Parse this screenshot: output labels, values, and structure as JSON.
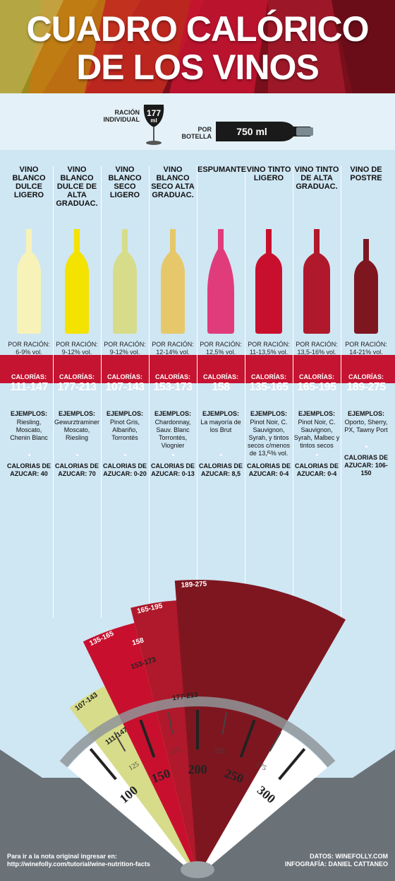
{
  "title": {
    "line1": "CUADRO CALÓRICO",
    "line2": "DE LOS VINOS"
  },
  "portion": {
    "single_label": "RACIÓN INDIVIDUAL",
    "single_value": "177",
    "single_unit": "ml",
    "bottle_label": "POR BOTELLA",
    "bottle_value": "750 ml"
  },
  "colors": {
    "band": "#c41431",
    "bg": "#cfe6f3"
  },
  "wines": [
    {
      "name": "VINO BLANCO DULCE LIGERO",
      "abv_label": "POR RACIÓN:",
      "abv": "6-9% vol.",
      "cal_label": "CALORÍAS:",
      "calories": "111-147",
      "examples_label": "EJEMPLOS:",
      "examples": "Riesling, Moscato, Chenin Blanc",
      "sugar_label": "CALORIAS DE AZUCAR: 40",
      "color": "#f7f2b8"
    },
    {
      "name": "VINO BLANCO DULCE DE ALTA GRADUAC.",
      "abv_label": "POR RACIÓN:",
      "abv": "9-12% vol.",
      "cal_label": "CALORÍAS:",
      "calories": "177-213",
      "examples_label": "EJEMPLOS:",
      "examples": "Gewurztraminer Moscato, Riesling",
      "sugar_label": "CALORIAS DE AZUCAR: 70",
      "color": "#f4e200"
    },
    {
      "name": "VINO BLANCO SECO LIGERO",
      "abv_label": "POR RACIÓN:",
      "abv": "9-12% vol.",
      "cal_label": "CALORÍAS:",
      "calories": "107-143",
      "examples_label": "EJEMPLOS:",
      "examples": "Pinot Gris, Albariño, Torrontés",
      "sugar_label": "CALORIAS DE AZUCAR: 0-20",
      "color": "#d7dc8a"
    },
    {
      "name": "VINO BLANCO SECO ALTA GRADUAC.",
      "abv_label": "POR RACIÓN:",
      "abv": "12-14% vol.",
      "cal_label": "CALORÍAS:",
      "calories": "153-173",
      "examples_label": "EJEMPLOS:",
      "examples": "Chardonnay, Sauv. Blanc Torrontés, Viognier",
      "sugar_label": "CALORIAS DE AZUCAR: 0-13",
      "color": "#e6c86a"
    },
    {
      "name": "ESPUMANTE",
      "abv_label": "POR RACIÓN:",
      "abv": "12,5% vol.",
      "cal_label": "CALORÍAS:",
      "calories": "158",
      "examples_label": "EJEMPLOS:",
      "examples": "La mayoría de los Brut",
      "sugar_label": "CALORIAS DE AZUCAR: 8,5",
      "color": "#e03c7c"
    },
    {
      "name": "VINO TINTO LIGERO",
      "abv_label": "POR RACIÓN:",
      "abv": "11-13,5% vol.",
      "cal_label": "CALORÍAS:",
      "calories": "135-165",
      "examples_label": "EJEMPLOS:",
      "examples": "Pinot Noir, C. Sauvignon, Syrah, y tintos secos c/menos de 13,5% vol.",
      "sugar_label": "CALORIAS DE AZUCAR: 0-4",
      "color": "#c8102e"
    },
    {
      "name": "VINO TINTO DE ALTA GRADUAC.",
      "abv_label": "POR RACIÓN:",
      "abv": "13,5-16% vol.",
      "cal_label": "CALORÍAS:",
      "calories": "165-195",
      "examples_label": "EJEMPLOS:",
      "examples": "Pinot Noir, C. Sauvignon, Syrah, Malbec y tintos secos",
      "sugar_label": "CALORIAS DE AZUCAR: 0-4",
      "color": "#b0182b"
    },
    {
      "name": "VINO DE POSTRE",
      "abv_label": "POR RACIÓN:",
      "abv": "14-21% vol.",
      "cal_label": "CALORÍAS:",
      "calories": "189-275",
      "examples_label": "EJEMPLOS:",
      "examples": "Oporto, Sherry, PX, Tawny Port",
      "sugar_label": "CALORIAS DE AZUCAR: 106-150",
      "color": "#7e1620"
    }
  ],
  "chart_data": {
    "type": "area",
    "title": "",
    "xlabel": "",
    "ylabel": "",
    "scale_min": 75,
    "scale_max": 325,
    "major_ticks": [
      "100",
      "150",
      "200",
      "250",
      "300"
    ],
    "minor_ticks": [
      "125",
      "175",
      "225",
      "275"
    ],
    "series": [
      {
        "name": "111-147",
        "low": 111,
        "high": 147,
        "color": "#f7f2b8"
      },
      {
        "name": "177-213",
        "low": 177,
        "high": 213,
        "color": "#f4e200"
      },
      {
        "name": "107-143",
        "low": 107,
        "high": 143,
        "color": "#d7dc8a"
      },
      {
        "name": "153-173",
        "low": 153,
        "high": 173,
        "color": "#e6c86a"
      },
      {
        "name": "158",
        "low": 158,
        "high": 158,
        "color": "#e03c7c"
      },
      {
        "name": "135-165",
        "low": 135,
        "high": 165,
        "color": "#c8102e"
      },
      {
        "name": "165-195",
        "low": 165,
        "high": 195,
        "color": "#b0182b"
      },
      {
        "name": "189-275",
        "low": 189,
        "high": 275,
        "color": "#7e1620"
      }
    ]
  },
  "footer": {
    "left_line1": "Para ir a la nota original ingresar en:",
    "left_line2": "http://winefolly.com/tutorial/wine-nutrition-facts",
    "right_line1": "DATOS: WINEFOLLY.COM",
    "right_line2": "INFOGRAFÍA: DANIEL CATTANEO"
  }
}
